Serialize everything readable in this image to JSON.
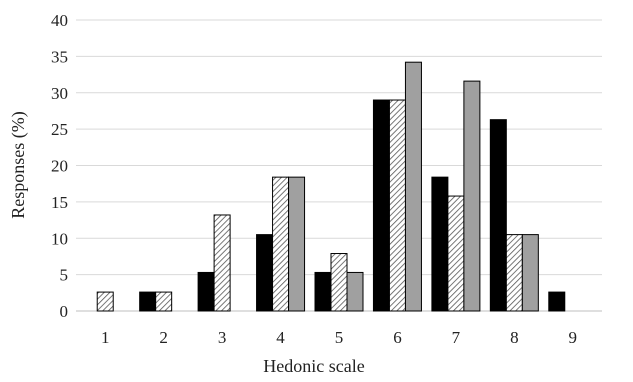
{
  "chart_data": {
    "type": "bar",
    "title": "",
    "xlabel": "Hedonic scale",
    "ylabel": "Responses  (%)",
    "categories": [
      "1",
      "2",
      "3",
      "4",
      "5",
      "6",
      "7",
      "8",
      "9"
    ],
    "ylim": [
      0,
      40
    ],
    "yticks": [
      0,
      5,
      10,
      15,
      20,
      25,
      30,
      35,
      40
    ],
    "grid": true,
    "legend": "none",
    "series": [
      {
        "fill": "solid-black",
        "color": "#000000",
        "values": [
          0,
          2.6,
          5.3,
          10.5,
          5.3,
          29,
          18.4,
          26.3,
          2.6
        ]
      },
      {
        "fill": "diagonal-hatch",
        "color": "#555555",
        "values": [
          2.6,
          2.6,
          13.2,
          18.4,
          7.9,
          29,
          15.8,
          10.5,
          0
        ]
      },
      {
        "fill": "solid-gray",
        "color": "#a0a0a0",
        "values": [
          0,
          0,
          0,
          18.4,
          5.3,
          34.2,
          31.6,
          10.5,
          0
        ]
      }
    ],
    "gridline_color": "#d9d9d9",
    "axis_color": "#bfbfbf",
    "bar_edge_color": "#000000"
  }
}
